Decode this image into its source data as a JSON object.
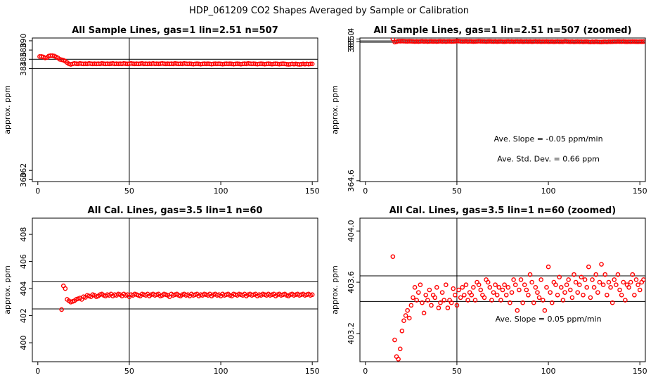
{
  "figure": {
    "title": "HDP_061209  CO2 Shapes Averaged by Sample or Calibration"
  },
  "chart_data": [
    {
      "type": "scatter",
      "title": "All Sample Lines, gas=1 lin=2.51 n=507",
      "ylabel": "approx. ppm",
      "xlabel": "",
      "xlim": [
        -3,
        153
      ],
      "ylim": [
        359.6,
        390.6
      ],
      "xticks": [
        "0",
        "50",
        "100",
        "150"
      ],
      "yticks": [
        "360",
        "362",
        "384",
        "386",
        "388",
        "390"
      ],
      "hlines": [
        384,
        386
      ],
      "vlines": [
        50
      ],
      "marker_color": "#ff0000",
      "x_start": 1,
      "values": [
        386.6,
        386.6,
        386.5,
        386.3,
        386.4,
        386.7,
        386.8,
        386.8,
        386.7,
        386.5,
        386.3,
        386.0,
        385.9,
        385.8,
        385.6,
        385.3,
        385.0,
        384.9,
        385.0,
        385.1,
        385.05,
        385.0,
        385.1,
        385.05,
        385.0,
        385.05,
        385.0,
        385.1,
        385.05,
        385.0,
        385.05,
        385.0,
        385.05,
        385.0,
        385.1,
        385.05,
        385.0,
        385.05,
        385.0,
        385.05,
        385.1,
        385.0,
        385.05,
        385.0,
        385.05,
        385.0,
        385.1,
        385.05,
        385.0,
        385.05,
        385.1,
        385.05,
        385.0,
        385.05,
        385.0,
        385.05,
        385.1,
        385.0,
        385.05,
        385.0,
        385.05,
        385.0,
        385.1,
        385.0,
        385.05,
        385.0,
        385.05,
        385.1,
        385.05,
        385.0,
        385.05,
        385.0,
        385.05,
        385.0,
        385.1,
        385.05,
        385.0,
        385.05,
        385.0,
        385.1,
        385.05,
        385.0,
        385.05,
        385.0,
        384.95,
        385.0,
        385.05,
        385.0,
        384.95,
        385.0,
        385.05,
        385.0,
        385.05,
        385.0,
        384.95,
        385.0,
        385.05,
        385.0,
        385.05,
        385.0,
        384.95,
        385.0,
        385.05,
        385.0,
        385.05,
        385.0,
        384.95,
        385.0,
        385.05,
        385.0,
        384.95,
        385.0,
        385.05,
        385.0,
        385.1,
        385.05,
        385.0,
        385.05,
        385.0,
        384.95,
        385.0,
        385.05,
        385.0,
        384.95,
        385.0,
        385.05,
        385.0,
        384.95,
        385.0,
        385.05,
        385.0,
        384.95,
        385.0,
        385.05,
        385.0,
        384.95,
        384.9,
        384.95,
        385.0,
        384.95,
        385.0,
        384.95,
        384.9,
        384.95,
        385.0,
        384.95,
        385.0,
        384.95,
        385.0,
        385.0
      ],
      "annotations": []
    },
    {
      "type": "scatter",
      "title": "All Sample Lines, gas=1 lin=2.51 n=507 (zoomed)",
      "ylabel": "approx. ppm",
      "xlabel": "",
      "xlim": [
        -3,
        153
      ],
      "ylim": [
        364.48,
        385.54
      ],
      "xticks": [
        "0",
        "50",
        "100",
        "150"
      ],
      "yticks": [
        "364.6",
        "385.0",
        "385.4"
      ],
      "hlines": [
        384.92,
        385.12
      ],
      "vlines": [
        50
      ],
      "marker_color": "#ff0000",
      "x_start": 15,
      "values": [
        385.43,
        384.94,
        384.99,
        385.08,
        385.07,
        385.08,
        385.07,
        385.06,
        385.05,
        385.07,
        385.06,
        385.04,
        385.02,
        385.04,
        385.02,
        385.05,
        385.07,
        385.03,
        385.06,
        385.02,
        385.04,
        385.06,
        385.03,
        385.05,
        385.02,
        385.04,
        385.07,
        385.03,
        385.06,
        385.02,
        385.05,
        385.06,
        385.03,
        385.04,
        385.06,
        385.1,
        385.08,
        385.06,
        385.04,
        385.05,
        385.07,
        385.03,
        385.06,
        385.04,
        385.02,
        385.03,
        385.05,
        385.07,
        385.06,
        385.05,
        385.04,
        385.02,
        385.04,
        385.06,
        385.03,
        385.02,
        385.04,
        385.01,
        385.03,
        385.05,
        385.02,
        385.0,
        385.03,
        385.06,
        385.02,
        385.04,
        385.01,
        385.03,
        385.05,
        385.02,
        385.04,
        385.0,
        385.02,
        385.03,
        385.01,
        385.03,
        385.0,
        385.02,
        385.04,
        385.01,
        385.03,
        385.0,
        385.02,
        385.01,
        385.03,
        385.0,
        385.01,
        385.02,
        384.99,
        385.01,
        385.03,
        385.0,
        385.01,
        384.99,
        385.06,
        385.03,
        385.01,
        384.99,
        385.02,
        384.98,
        385.0,
        385.02,
        384.99,
        385.01,
        384.98,
        385.0,
        385.01,
        384.98,
        384.96,
        384.99,
        384.97,
        385.0,
        384.98,
        384.97,
        384.95,
        384.98,
        384.99,
        384.97,
        385.0,
        384.99,
        385.0,
        385.02,
        385.01,
        385.03,
        385.02,
        385.01,
        385.03,
        385.0,
        384.99,
        385.01,
        385.0,
        385.02,
        385.01,
        385.0,
        384.99,
        385.01,
        385.0,
        385.02
      ],
      "annotations": [
        "Ave. Slope =  -0.05  ppm/min",
        "Ave. Std. Dev. =  0.66  ppm"
      ]
    },
    {
      "type": "scatter",
      "title": "All Cal. Lines, gas=3.5 lin=1 n=60",
      "ylabel": "approx. ppm",
      "xlabel": "",
      "xlim": [
        -3,
        153
      ],
      "ylim": [
        398.6,
        409.2
      ],
      "xticks": [
        "0",
        "50",
        "100",
        "150"
      ],
      "yticks": [
        "400",
        "402",
        "404",
        "406",
        "408"
      ],
      "hlines": [
        402.5,
        404.5
      ],
      "vlines": [
        50
      ],
      "marker_color": "#ff0000",
      "x_start": 13,
      "values": [
        402.45,
        404.2,
        404.0,
        403.2,
        403.1,
        403.0,
        403.05,
        403.1,
        403.2,
        403.25,
        403.3,
        403.2,
        403.4,
        403.35,
        403.5,
        403.45,
        403.4,
        403.55,
        403.5,
        403.4,
        403.45,
        403.55,
        403.6,
        403.5,
        403.45,
        403.55,
        403.5,
        403.6,
        403.45,
        403.55,
        403.5,
        403.6,
        403.55,
        403.45,
        403.6,
        403.5,
        403.55,
        403.4,
        403.55,
        403.5,
        403.6,
        403.55,
        403.5,
        403.45,
        403.6,
        403.55,
        403.5,
        403.6,
        403.45,
        403.55,
        403.6,
        403.5,
        403.55,
        403.6,
        403.45,
        403.5,
        403.6,
        403.55,
        403.5,
        403.4,
        403.6,
        403.5,
        403.55,
        403.6,
        403.5,
        403.45,
        403.55,
        403.6,
        403.5,
        403.55,
        403.45,
        403.6,
        403.5,
        403.55,
        403.6,
        403.45,
        403.55,
        403.5,
        403.6,
        403.55,
        403.5,
        403.6,
        403.45,
        403.55,
        403.6,
        403.5,
        403.55,
        403.45,
        403.6,
        403.5,
        403.55,
        403.6,
        403.5,
        403.45,
        403.6,
        403.55,
        403.5,
        403.6,
        403.55,
        403.5,
        403.6,
        403.45,
        403.55,
        403.6,
        403.5,
        403.55,
        403.6,
        403.45,
        403.55,
        403.5,
        403.6,
        403.55,
        403.5,
        403.6,
        403.5,
        403.55,
        403.6,
        403.45,
        403.55,
        403.6,
        403.5,
        403.55,
        403.6,
        403.5,
        403.45,
        403.55,
        403.6,
        403.5,
        403.55,
        403.6,
        403.5,
        403.55,
        403.6,
        403.5,
        403.55,
        403.6,
        403.5,
        403.55
      ],
      "annotations": []
    },
    {
      "type": "scatter",
      "title": "All Cal. Lines, gas=3.5 lin=1 n=60 (zoomed)",
      "ylabel": "approx. ppm",
      "xlabel": "",
      "xlim": [
        -3,
        153
      ],
      "ylim": [
        402.98,
        404.1
      ],
      "xticks": [
        "0",
        "50",
        "100",
        "150"
      ],
      "yticks": [
        "403.2",
        "403.6",
        "404.0"
      ],
      "hlines": [
        403.45,
        403.65
      ],
      "vlines": [
        50
      ],
      "marker_color": "#ff0000",
      "x_start": 15,
      "values": [
        403.8,
        403.15,
        403.02,
        403.0,
        403.08,
        403.22,
        403.3,
        403.34,
        403.38,
        403.32,
        403.42,
        403.48,
        403.56,
        403.46,
        403.52,
        403.58,
        403.44,
        403.36,
        403.5,
        403.46,
        403.54,
        403.42,
        403.5,
        403.48,
        403.56,
        403.4,
        403.44,
        403.52,
        403.46,
        403.58,
        403.4,
        403.46,
        403.44,
        403.55,
        403.5,
        403.42,
        403.54,
        403.48,
        403.56,
        403.5,
        403.58,
        403.46,
        403.52,
        403.5,
        403.56,
        403.46,
        403.6,
        403.58,
        403.54,
        403.5,
        403.48,
        403.62,
        403.6,
        403.56,
        403.46,
        403.52,
        403.58,
        403.5,
        403.56,
        403.46,
        403.54,
        403.58,
        403.5,
        403.56,
        403.44,
        403.52,
        403.62,
        403.58,
        403.38,
        403.54,
        403.62,
        403.44,
        403.58,
        403.54,
        403.5,
        403.66,
        403.6,
        403.44,
        403.56,
        403.52,
        403.48,
        403.62,
        403.46,
        403.38,
        403.56,
        403.72,
        403.52,
        403.44,
        403.6,
        403.58,
        403.5,
        403.64,
        403.56,
        403.46,
        403.52,
        403.58,
        403.62,
        403.54,
        403.48,
        403.66,
        403.6,
        403.52,
        403.58,
        403.64,
        403.5,
        403.62,
        403.56,
        403.72,
        403.48,
        403.62,
        403.56,
        403.66,
        403.52,
        403.6,
        403.74,
        403.58,
        403.66,
        403.5,
        403.6,
        403.56,
        403.44,
        403.62,
        403.58,
        403.66,
        403.54,
        403.5,
        403.6,
        403.46,
        403.58,
        403.56,
        403.6,
        403.66,
        403.5,
        403.62,
        403.58,
        403.54,
        403.6,
        403.62
      ],
      "annotations": [
        "Ave. Slope =  0.05  ppm/min"
      ]
    }
  ]
}
